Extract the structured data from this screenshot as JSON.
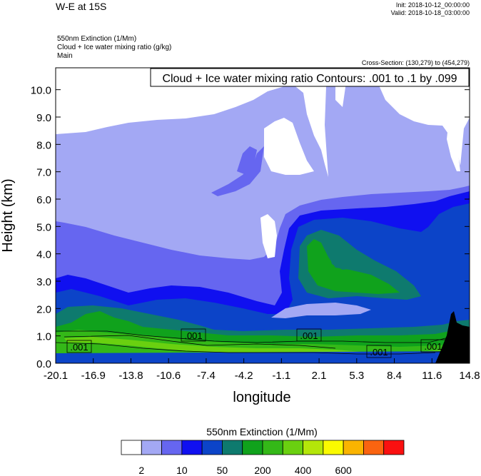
{
  "header": {
    "title": "W-E at 15S",
    "init": "Init: 2018-10-12_00:00:00",
    "valid": "Valid: 2018-10-18_03:00:00",
    "field1": "550nm Extinction   (1/Mm)",
    "field2": "Cloud + Ice water mixing ratio   (g/kg)",
    "field3": "Main",
    "cross_section": "Cross-Section: (130,279) to (454,279)"
  },
  "contour_box": "Cloud + Ice water mixing ratio Contours: .001 to .1 by .099",
  "contour_labels": [
    ".001",
    ".001",
    ".001",
    ".001",
    ".001"
  ],
  "colorbar": {
    "title": "550nm Extinction  (1/Mm)",
    "colors": [
      "#ffffff",
      "#a3a8f4",
      "#6666f0",
      "#1010f0",
      "#0c44c8",
      "#0e7a6e",
      "#10a21c",
      "#34b818",
      "#6ad010",
      "#b4e60a",
      "#fafa00",
      "#fab400",
      "#fa6410",
      "#fa1010"
    ],
    "labels": [
      "2",
      "10",
      "50",
      "200",
      "400",
      "600"
    ]
  },
  "colors": {
    "white": "#ffffff",
    "lavender": "#a3a8f4",
    "medium_blue": "#6666f0",
    "blue": "#1010f0",
    "navy": "#0c44c8",
    "teal": "#0e7a6e",
    "green": "#10a21c",
    "terrain": "#000000"
  },
  "chart_data": {
    "type": "heatmap",
    "title": "W-E at 15S",
    "xlabel": "longitude",
    "ylabel": "Height (km)",
    "x_ticks": [
      "-20.1",
      "-16.9",
      "-13.8",
      "-10.6",
      "-7.4",
      "-4.2",
      "-1.1",
      "2.1",
      "5.3",
      "8.4",
      "11.6",
      "14.8"
    ],
    "y_ticks": [
      "0.0",
      "1.0",
      "2.0",
      "3.0",
      "4.0",
      "5.0",
      "6.0",
      "7.0",
      "8.0",
      "9.0",
      "10.0"
    ],
    "xlim": [
      -20.1,
      14.8
    ],
    "ylim": [
      0.0,
      10.8
    ],
    "color_levels": [
      "2",
      "10",
      "50",
      "200",
      "400",
      "600"
    ]
  }
}
